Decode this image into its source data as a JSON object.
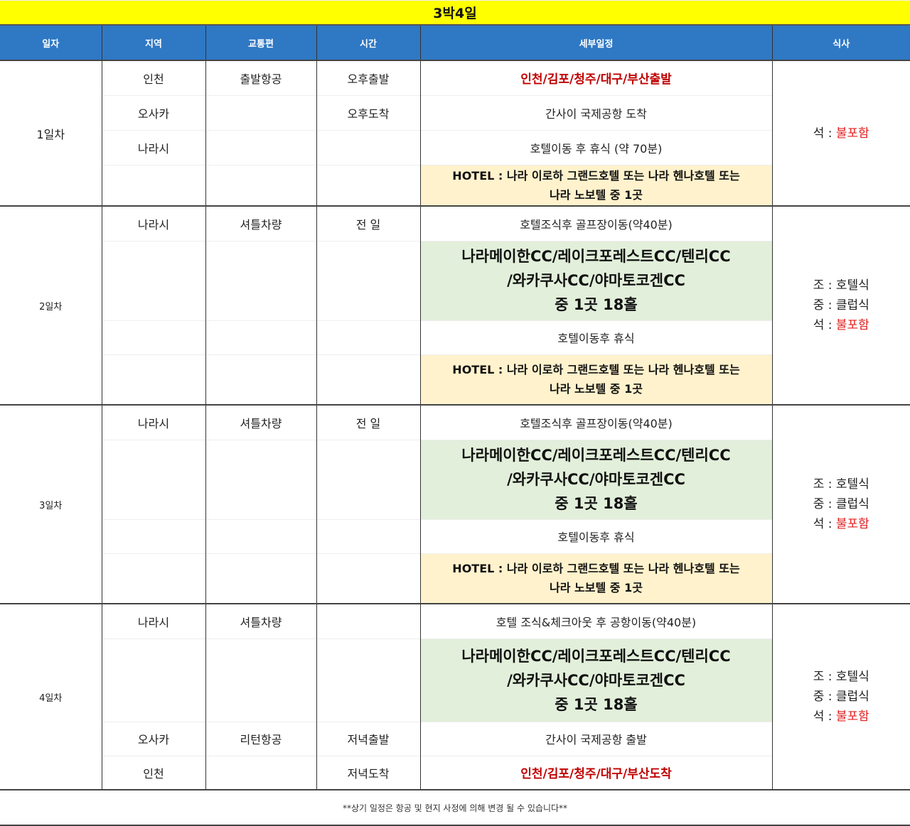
{
  "title": "3박4일",
  "headers": [
    "일자",
    "지역",
    "교통편",
    "시간",
    "세부일정",
    "식사"
  ],
  "days": [
    {
      "label": "1일차",
      "meals": [
        {
          "prefix": "석",
          "value": "불포함"
        }
      ],
      "rows": [
        {
          "region": "인천",
          "transport": "출발항공",
          "time": "오후출발",
          "detail": "인천/김포/청주/대구/부산출발",
          "style": "red"
        },
        {
          "region": "오사카",
          "transport": "",
          "time": "오후도착",
          "detail": "간사이 국제공항 도착",
          "style": "normal"
        },
        {
          "region": "나라시",
          "transport": "",
          "time": "",
          "detail": "호텔이동 후 휴식 (약 70분)",
          "style": "normal"
        },
        {
          "region": "",
          "transport": "",
          "time": "",
          "detail": "HOTEL : 나라 이로하 그랜드호텔 또는 나라 헨나호텔 또는 나라 노보텔 중 1곳",
          "style": "hotel"
        }
      ]
    },
    {
      "label": "2일차",
      "meals": [
        {
          "prefix": "조",
          "value": "호텔식"
        },
        {
          "prefix": "중",
          "value": "클럽식"
        },
        {
          "prefix": "석",
          "value": "불포함"
        }
      ],
      "rows": [
        {
          "region": "나라시",
          "transport": "셔틀차량",
          "time": "전  일",
          "detail": "호텔조식후 골프장이동(약40분)",
          "style": "normal"
        },
        {
          "region": "",
          "transport": "",
          "time": "",
          "detail": "나라메이한CC/레이크포레스트CC/텐리CC /와카쿠사CC/야마토코겐CC 중 1곳 18홀",
          "style": "golf"
        },
        {
          "region": "",
          "transport": "",
          "time": "",
          "detail": "호텔이동후 휴식",
          "style": "normal"
        },
        {
          "region": "",
          "transport": "",
          "time": "",
          "detail": "HOTEL : 나라 이로하 그랜드호텔 또는 나라 헨나호텔 또는 나라 노보텔 중 1곳",
          "style": "hotel"
        }
      ]
    },
    {
      "label": "3일차",
      "meals": [
        {
          "prefix": "조",
          "value": "호텔식"
        },
        {
          "prefix": "중",
          "value": "클럽식"
        },
        {
          "prefix": "석",
          "value": "불포함"
        }
      ],
      "rows": [
        {
          "region": "나라시",
          "transport": "셔틀차량",
          "time": "전  일",
          "detail": "호텔조식후 골프장이동(약40분)",
          "style": "normal"
        },
        {
          "region": "",
          "transport": "",
          "time": "",
          "detail": "나라메이한CC/레이크포레스트CC/텐리CC /와카쿠사CC/야마토코겐CC 중 1곳 18홀",
          "style": "golf"
        },
        {
          "region": "",
          "transport": "",
          "time": "",
          "detail": "호텔이동후 휴식",
          "style": "normal"
        },
        {
          "region": "",
          "transport": "",
          "time": "",
          "detail": "HOTEL : 나라 이로하 그랜드호텔 또는 나라 헨나호텔 또는 나라 노보텔 중 1곳",
          "style": "hotel"
        }
      ]
    },
    {
      "label": "4일차",
      "meals": [
        {
          "prefix": "조",
          "value": "호텔식"
        },
        {
          "prefix": "중",
          "value": "클럽식"
        },
        {
          "prefix": "석",
          "value": "불포함"
        }
      ],
      "rows": [
        {
          "region": "나라시",
          "transport": "셔틀차량",
          "time": "",
          "detail": "호텔 조식&체크아웃 후 공항이동(약40분)",
          "style": "normal"
        },
        {
          "region": "",
          "transport": "",
          "time": "",
          "detail": "나라메이한CC/레이크포레스트CC/텐리CC /와카쿠사CC/야마토코겐CC 중 1곳 18홀",
          "style": "golf"
        },
        {
          "region": "오사카",
          "transport": "리턴항공",
          "time": "저녁출발",
          "detail": "간사이 국제공항 출발",
          "style": "normal"
        },
        {
          "region": "인천",
          "transport": "",
          "time": "저녁도착",
          "detail": "인천/김포/청주/대구/부산도착",
          "style": "red"
        }
      ]
    }
  ],
  "footer": "**상기 일정은 항공 및 현지 사정에 의해 변경 될 수 있습니다**"
}
